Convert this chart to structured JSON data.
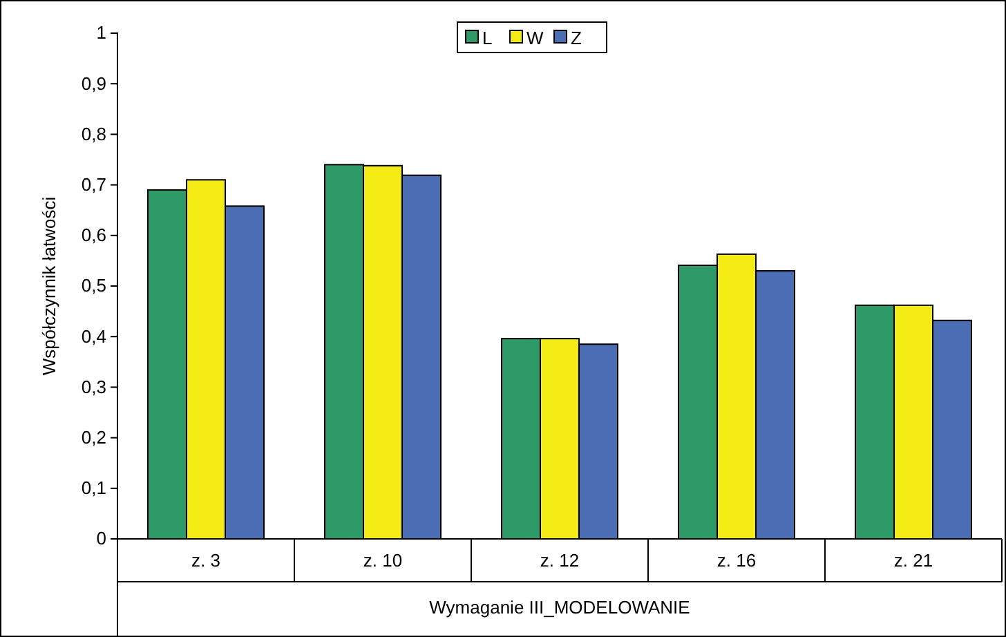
{
  "chart_data": {
    "type": "bar",
    "xlabel": "Wymaganie III_MODELOWANIE",
    "ylabel": "Współczynnik łatwości",
    "categories": [
      "z. 3",
      "z. 10",
      "z. 12",
      "z. 16",
      "z. 21"
    ],
    "series": [
      {
        "name": "L",
        "color": "#2e9a68",
        "values": [
          0.69,
          0.74,
          0.396,
          0.541,
          0.462
        ]
      },
      {
        "name": "W",
        "color": "#f5eb14",
        "values": [
          0.71,
          0.738,
          0.396,
          0.563,
          0.462
        ]
      },
      {
        "name": "Z",
        "color": "#4a6db4",
        "values": [
          0.658,
          0.719,
          0.385,
          0.53,
          0.432
        ]
      }
    ],
    "ylim": [
      0,
      1
    ],
    "yticks": [
      0,
      {
        "value": 0.1,
        "label": "0,1"
      },
      {
        "value": 0.2,
        "label": "0,2"
      },
      {
        "value": 0.3,
        "label": "0,3"
      },
      {
        "value": 0.4,
        "label": "0,4"
      },
      {
        "value": 0.5,
        "label": "0,5"
      },
      {
        "value": 0.6,
        "label": "0,6"
      },
      {
        "value": 0.7,
        "label": "0,7"
      },
      {
        "value": 0.8,
        "label": "0,8"
      },
      {
        "value": 0.9,
        "label": "0,9"
      },
      1
    ],
    "grid": false,
    "legend": "top"
  }
}
